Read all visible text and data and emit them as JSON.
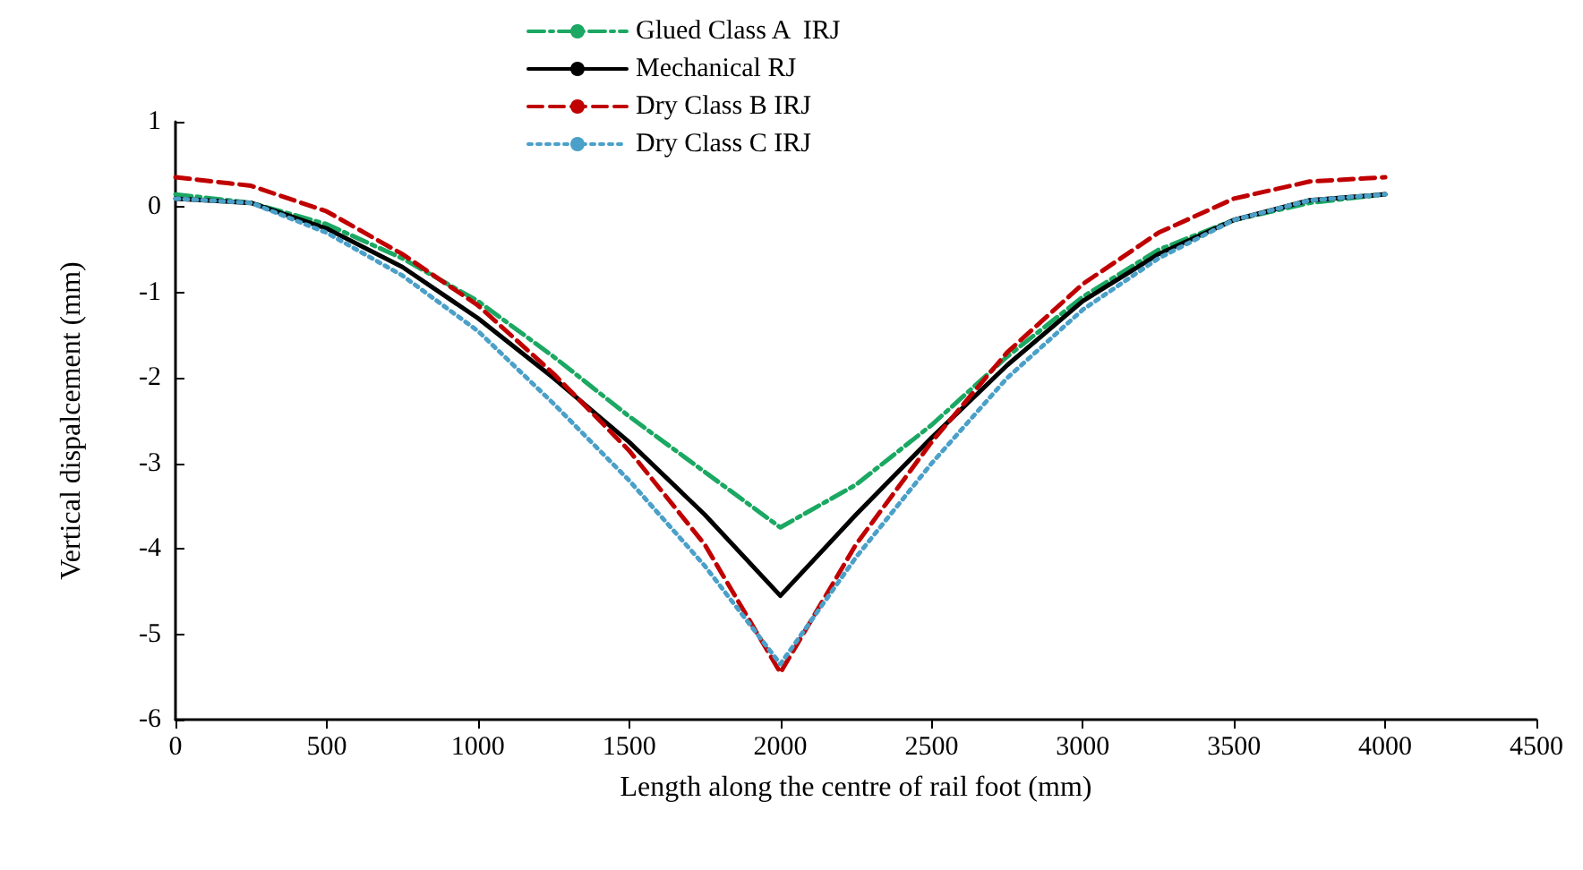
{
  "chart_data": {
    "type": "line",
    "xlabel": "Length along the centre of rail foot (mm)",
    "ylabel": "Vertical dispalcement (mm)",
    "x": [
      0,
      250,
      500,
      750,
      1000,
      1250,
      1500,
      1750,
      2000,
      2250,
      2500,
      2750,
      3000,
      3250,
      3500,
      3750,
      4000
    ],
    "series": [
      {
        "name": "Glued Class A  IRJ",
        "color": "#1aa862",
        "line_style": "dashdot",
        "values": [
          0.15,
          0.05,
          -0.2,
          -0.6,
          -1.1,
          -1.75,
          -2.45,
          -3.1,
          -3.75,
          -3.25,
          -2.55,
          -1.75,
          -1.05,
          -0.5,
          -0.15,
          0.05,
          0.15
        ]
      },
      {
        "name": "Mechanical RJ",
        "color": "#000000",
        "line_style": "solid",
        "values": [
          0.1,
          0.05,
          -0.25,
          -0.7,
          -1.3,
          -2.0,
          -2.75,
          -3.6,
          -4.55,
          -3.6,
          -2.7,
          -1.85,
          -1.1,
          -0.55,
          -0.15,
          0.08,
          0.15
        ]
      },
      {
        "name": "Dry Class B IRJ",
        "color": "#c00000",
        "line_style": "dashed",
        "values": [
          0.35,
          0.25,
          -0.05,
          -0.55,
          -1.15,
          -1.95,
          -2.85,
          -3.95,
          -5.45,
          -3.95,
          -2.75,
          -1.7,
          -0.9,
          -0.3,
          0.1,
          0.3,
          0.35
        ]
      },
      {
        "name": "Dry Class C IRJ",
        "color": "#4aa0c8",
        "line_style": "dotted",
        "values": [
          0.1,
          0.05,
          -0.3,
          -0.8,
          -1.45,
          -2.3,
          -3.2,
          -4.2,
          -5.35,
          -4.1,
          -3.0,
          -2.0,
          -1.2,
          -0.6,
          -0.15,
          0.08,
          0.15
        ]
      }
    ],
    "xlim": [
      0,
      4500
    ],
    "xticks": [
      0,
      500,
      1000,
      1500,
      2000,
      2500,
      3000,
      3500,
      4000,
      4500
    ],
    "ylim": [
      -6,
      1
    ],
    "yticks": [
      -6,
      -5,
      -4,
      -3,
      -2,
      -1,
      0,
      1
    ],
    "grid": false,
    "legend": "top",
    "marker": "none"
  }
}
